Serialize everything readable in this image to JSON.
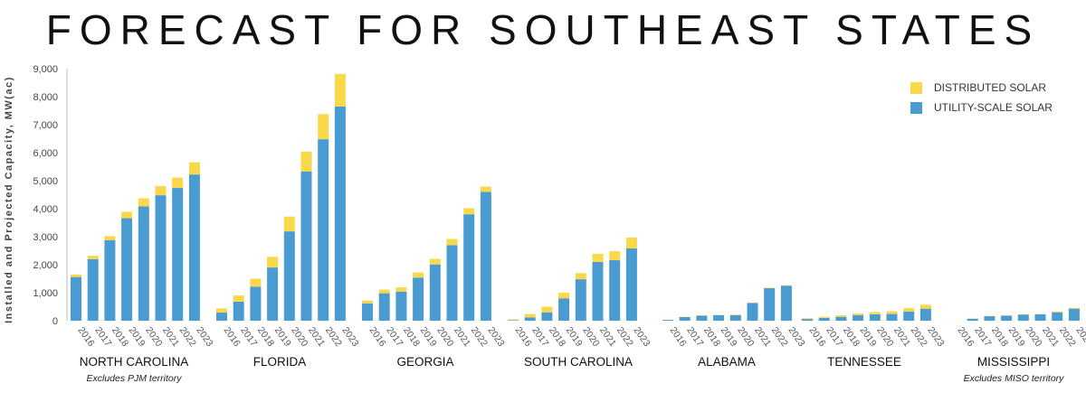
{
  "chart_data": {
    "type": "bar",
    "stacked": true,
    "title": "FORECAST FOR SOUTHEAST STATES",
    "ylabel": "Installed and Projected Capacity, MW(ac)",
    "ylim": [
      0,
      9000
    ],
    "yticks": [
      "0",
      "1,000",
      "2,000",
      "3,000",
      "4,000",
      "5,000",
      "6,000",
      "7,000",
      "8,000",
      "9,000"
    ],
    "grid": false,
    "legend_position": "top-right",
    "years": [
      "2016",
      "2017",
      "2018",
      "2019",
      "2020",
      "2021",
      "2022",
      "2023"
    ],
    "series": [
      {
        "name": "DISTRIBUTED SOLAR",
        "color": "#F9D849"
      },
      {
        "name": "UTILITY-SCALE SOLAR",
        "color": "#4A9BD1"
      }
    ],
    "groups": [
      {
        "state": "NORTH CAROLINA",
        "note": "Excludes PJM territory",
        "utility": [
          1560,
          2200,
          2880,
          3660,
          4080,
          4480,
          4740,
          5220
        ],
        "distributed": [
          90,
          120,
          140,
          230,
          290,
          330,
          370,
          440
        ]
      },
      {
        "state": "FLORIDA",
        "note": "",
        "utility": [
          290,
          680,
          1210,
          1900,
          3190,
          5330,
          6480,
          7650
        ],
        "distributed": [
          150,
          220,
          290,
          380,
          530,
          710,
          900,
          1160
        ]
      },
      {
        "state": "GEORGIA",
        "note": "",
        "utility": [
          620,
          980,
          1040,
          1540,
          2010,
          2700,
          3800,
          4600
        ],
        "distributed": [
          100,
          130,
          150,
          180,
          200,
          220,
          220,
          190
        ]
      },
      {
        "state": "SOUTH CAROLINA",
        "note": "",
        "utility": [
          20,
          120,
          300,
          800,
          1480,
          2100,
          2160,
          2580
        ],
        "distributed": [
          30,
          120,
          200,
          200,
          220,
          290,
          320,
          390
        ]
      },
      {
        "state": "ALABAMA",
        "note": "",
        "utility": [
          30,
          130,
          180,
          200,
          200,
          630,
          1160,
          1250
        ],
        "distributed": [
          5,
          10,
          10,
          10,
          20,
          20,
          20,
          20
        ]
      },
      {
        "state": "TENNESSEE",
        "note": "",
        "utility": [
          60,
          100,
          140,
          200,
          230,
          240,
          330,
          430
        ],
        "distributed": [
          30,
          40,
          50,
          60,
          80,
          100,
          120,
          140
        ]
      },
      {
        "state": "MISSISSIPPI",
        "note": "Excludes MISO territory",
        "utility": [
          0,
          70,
          160,
          180,
          220,
          230,
          300,
          430
        ],
        "distributed": [
          5,
          10,
          10,
          10,
          10,
          10,
          30,
          30
        ]
      }
    ]
  }
}
